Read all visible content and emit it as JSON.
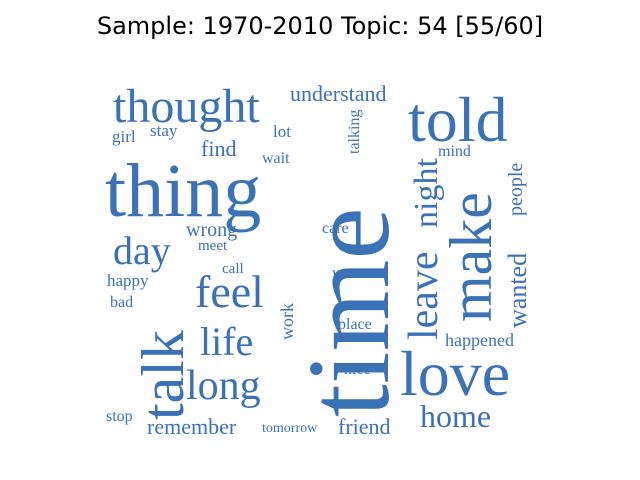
{
  "title": "Sample: 1970-2010 Topic: 54 [55/60]",
  "word_color": "#3a72b8",
  "words": [
    {
      "id": "time",
      "text": "time"
    },
    {
      "id": "thing",
      "text": "thing"
    },
    {
      "id": "thought",
      "text": "thought"
    },
    {
      "id": "told",
      "text": "told"
    },
    {
      "id": "make",
      "text": "make"
    },
    {
      "id": "love",
      "text": "love"
    },
    {
      "id": "talk",
      "text": "talk"
    },
    {
      "id": "feel",
      "text": "feel"
    },
    {
      "id": "long",
      "text": "long"
    },
    {
      "id": "life",
      "text": "life"
    },
    {
      "id": "day",
      "text": "day"
    },
    {
      "id": "leave",
      "text": "leave"
    },
    {
      "id": "night",
      "text": "night"
    },
    {
      "id": "home",
      "text": "home"
    },
    {
      "id": "wanted",
      "text": "wanted"
    },
    {
      "id": "people",
      "text": "people"
    },
    {
      "id": "understand",
      "text": "understand"
    },
    {
      "id": "remember",
      "text": "remember"
    },
    {
      "id": "friend",
      "text": "friend"
    },
    {
      "id": "happened",
      "text": "happened"
    },
    {
      "id": "wrong",
      "text": "wrong"
    },
    {
      "id": "find",
      "text": "find"
    },
    {
      "id": "stay",
      "text": "stay"
    },
    {
      "id": "girl",
      "text": "girl"
    },
    {
      "id": "lot",
      "text": "lot"
    },
    {
      "id": "wait",
      "text": "wait"
    },
    {
      "id": "talking",
      "text": "talking"
    },
    {
      "id": "mind",
      "text": "mind"
    },
    {
      "id": "meet",
      "text": "meet"
    },
    {
      "id": "care",
      "text": "care"
    },
    {
      "id": "call",
      "text": "call"
    },
    {
      "id": "years",
      "text": "years"
    },
    {
      "id": "happy",
      "text": "happy"
    },
    {
      "id": "bad",
      "text": "bad"
    },
    {
      "id": "work",
      "text": "work"
    },
    {
      "id": "place",
      "text": "place"
    },
    {
      "id": "nice",
      "text": "nice"
    },
    {
      "id": "stop",
      "text": "stop"
    },
    {
      "id": "tomorrow",
      "text": "tomorrow"
    }
  ]
}
